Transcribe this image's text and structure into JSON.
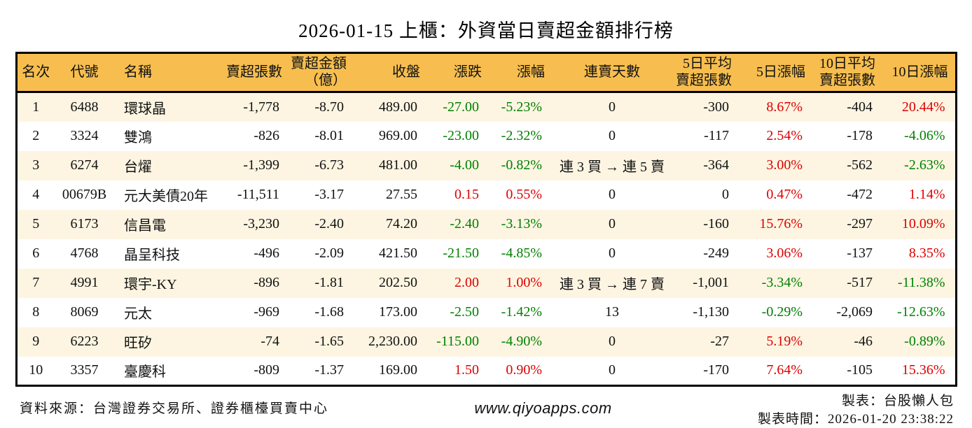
{
  "title": "2026-01-15 上櫃：外資當日賣超金額排行榜",
  "colors": {
    "header_bg": "#f7be4f",
    "row_stripe_bg": "#fdf5e2",
    "up_red": "#dd0000",
    "down_green": "#008000",
    "border": "#000000"
  },
  "table": {
    "columns": [
      {
        "label": "名次",
        "align": "ac"
      },
      {
        "label": "代號",
        "align": "ac"
      },
      {
        "label": "名稱",
        "align": "al"
      },
      {
        "label": "賣超張數",
        "align": "ar"
      },
      {
        "label": "賣超金額\n（億）",
        "align": "ar"
      },
      {
        "label": "收盤",
        "align": "ar"
      },
      {
        "label": "漲跌",
        "align": "ar"
      },
      {
        "label": "漲幅",
        "align": "ar"
      },
      {
        "label": "連賣天數",
        "align": "ac"
      },
      {
        "label": "5日平均\n賣超張數",
        "align": "ar"
      },
      {
        "label": "5日漲幅",
        "align": "ar"
      },
      {
        "label": "10日平均\n賣超張數",
        "align": "ar"
      },
      {
        "label": "10日漲幅",
        "align": "ar"
      }
    ],
    "rows": [
      {
        "cells": [
          {
            "v": "1"
          },
          {
            "v": "6488"
          },
          {
            "v": "環球晶"
          },
          {
            "v": "-1,778"
          },
          {
            "v": "-8.70"
          },
          {
            "v": "489.00"
          },
          {
            "v": "-27.00",
            "c": "green"
          },
          {
            "v": "-5.23%",
            "c": "green"
          },
          {
            "v": "0"
          },
          {
            "v": "-300"
          },
          {
            "v": "8.67%",
            "c": "red"
          },
          {
            "v": "-404"
          },
          {
            "v": "20.44%",
            "c": "red"
          }
        ]
      },
      {
        "cells": [
          {
            "v": "2"
          },
          {
            "v": "3324"
          },
          {
            "v": "雙鴻"
          },
          {
            "v": "-826"
          },
          {
            "v": "-8.01"
          },
          {
            "v": "969.00"
          },
          {
            "v": "-23.00",
            "c": "green"
          },
          {
            "v": "-2.32%",
            "c": "green"
          },
          {
            "v": "0"
          },
          {
            "v": "-117"
          },
          {
            "v": "2.54%",
            "c": "red"
          },
          {
            "v": "-178"
          },
          {
            "v": "-4.06%",
            "c": "green"
          }
        ]
      },
      {
        "cells": [
          {
            "v": "3"
          },
          {
            "v": "6274"
          },
          {
            "v": "台燿"
          },
          {
            "v": "-1,399"
          },
          {
            "v": "-6.73"
          },
          {
            "v": "481.00"
          },
          {
            "v": "-4.00",
            "c": "green"
          },
          {
            "v": "-0.82%",
            "c": "green"
          },
          {
            "v": "連 3 買 → 連 5 賣"
          },
          {
            "v": "-364"
          },
          {
            "v": "3.00%",
            "c": "red"
          },
          {
            "v": "-562"
          },
          {
            "v": "-2.63%",
            "c": "green"
          }
        ]
      },
      {
        "cells": [
          {
            "v": "4"
          },
          {
            "v": "00679B"
          },
          {
            "v": "元大美債20年"
          },
          {
            "v": "-11,511"
          },
          {
            "v": "-3.17"
          },
          {
            "v": "27.55"
          },
          {
            "v": "0.15",
            "c": "red"
          },
          {
            "v": "0.55%",
            "c": "red"
          },
          {
            "v": "0"
          },
          {
            "v": "0"
          },
          {
            "v": "0.47%",
            "c": "red"
          },
          {
            "v": "-472"
          },
          {
            "v": "1.14%",
            "c": "red"
          }
        ]
      },
      {
        "cells": [
          {
            "v": "5"
          },
          {
            "v": "6173"
          },
          {
            "v": "信昌電"
          },
          {
            "v": "-3,230"
          },
          {
            "v": "-2.40"
          },
          {
            "v": "74.20"
          },
          {
            "v": "-2.40",
            "c": "green"
          },
          {
            "v": "-3.13%",
            "c": "green"
          },
          {
            "v": "0"
          },
          {
            "v": "-160"
          },
          {
            "v": "15.76%",
            "c": "red"
          },
          {
            "v": "-297"
          },
          {
            "v": "10.09%",
            "c": "red"
          }
        ]
      },
      {
        "cells": [
          {
            "v": "6"
          },
          {
            "v": "4768"
          },
          {
            "v": "晶呈科技"
          },
          {
            "v": "-496"
          },
          {
            "v": "-2.09"
          },
          {
            "v": "421.50"
          },
          {
            "v": "-21.50",
            "c": "green"
          },
          {
            "v": "-4.85%",
            "c": "green"
          },
          {
            "v": "0"
          },
          {
            "v": "-249"
          },
          {
            "v": "3.06%",
            "c": "red"
          },
          {
            "v": "-137"
          },
          {
            "v": "8.35%",
            "c": "red"
          }
        ]
      },
      {
        "cells": [
          {
            "v": "7"
          },
          {
            "v": "4991"
          },
          {
            "v": "環宇-KY"
          },
          {
            "v": "-896"
          },
          {
            "v": "-1.81"
          },
          {
            "v": "202.50"
          },
          {
            "v": "2.00",
            "c": "red"
          },
          {
            "v": "1.00%",
            "c": "red"
          },
          {
            "v": "連 3 買 → 連 7 賣"
          },
          {
            "v": "-1,001"
          },
          {
            "v": "-3.34%",
            "c": "green"
          },
          {
            "v": "-517"
          },
          {
            "v": "-11.38%",
            "c": "green"
          }
        ]
      },
      {
        "cells": [
          {
            "v": "8"
          },
          {
            "v": "8069"
          },
          {
            "v": "元太"
          },
          {
            "v": "-969"
          },
          {
            "v": "-1.68"
          },
          {
            "v": "173.00"
          },
          {
            "v": "-2.50",
            "c": "green"
          },
          {
            "v": "-1.42%",
            "c": "green"
          },
          {
            "v": "13"
          },
          {
            "v": "-1,130"
          },
          {
            "v": "-0.29%",
            "c": "green"
          },
          {
            "v": "-2,069"
          },
          {
            "v": "-12.63%",
            "c": "green"
          }
        ]
      },
      {
        "cells": [
          {
            "v": "9"
          },
          {
            "v": "6223"
          },
          {
            "v": "旺矽"
          },
          {
            "v": "-74"
          },
          {
            "v": "-1.65"
          },
          {
            "v": "2,230.00"
          },
          {
            "v": "-115.00",
            "c": "green"
          },
          {
            "v": "-4.90%",
            "c": "green"
          },
          {
            "v": "0"
          },
          {
            "v": "-27"
          },
          {
            "v": "5.19%",
            "c": "red"
          },
          {
            "v": "-46"
          },
          {
            "v": "-0.89%",
            "c": "green"
          }
        ]
      },
      {
        "cells": [
          {
            "v": "10"
          },
          {
            "v": "3357"
          },
          {
            "v": "臺慶科"
          },
          {
            "v": "-809"
          },
          {
            "v": "-1.37"
          },
          {
            "v": "169.00"
          },
          {
            "v": "1.50",
            "c": "red"
          },
          {
            "v": "0.90%",
            "c": "red"
          },
          {
            "v": "0"
          },
          {
            "v": "-170"
          },
          {
            "v": "7.64%",
            "c": "red"
          },
          {
            "v": "-105"
          },
          {
            "v": "15.36%",
            "c": "red"
          }
        ]
      }
    ]
  },
  "footer": {
    "source": "資料來源：台灣證券交易所、證券櫃檯買賣中心",
    "website": "www.qiyoapps.com",
    "made_by": "製表：台股懶人包",
    "made_at": "製表時間：2026-01-20 23:38:22"
  }
}
